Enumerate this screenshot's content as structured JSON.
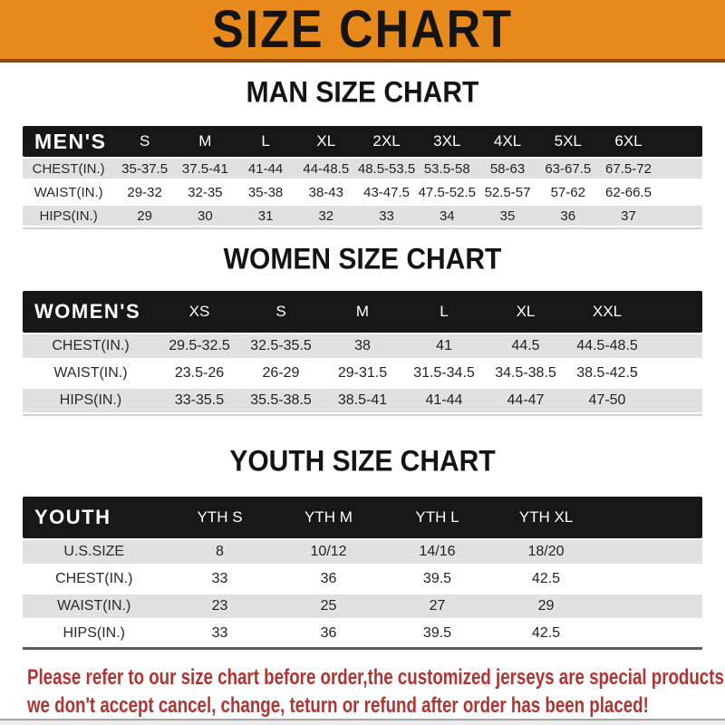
{
  "banner": {
    "title": "SIZE CHART",
    "bg_color": "#E8891C",
    "text_color": "#141414"
  },
  "sections": {
    "men": {
      "title": "MAN SIZE CHART",
      "table": {
        "header": {
          "label": "MEN'S",
          "sizes": [
            "S",
            "M",
            "L",
            "XL",
            "2XL",
            "3XL",
            "4XL",
            "5XL",
            "6XL"
          ]
        },
        "rows": [
          {
            "label": "CHEST(IN.)",
            "values": [
              "35-37.5",
              "37.5-41",
              "41-44",
              "44-48.5",
              "48.5-53.5",
              "53.5-58",
              "58-63",
              "63-67.5",
              "67.5-72"
            ]
          },
          {
            "label": "WAIST(IN.)",
            "values": [
              "29-32",
              "32-35",
              "35-38",
              "38-43",
              "43-47.5",
              "47.5-52.5",
              "52.5-57",
              "57-62",
              "62-66.5"
            ]
          },
          {
            "label": "HIPS(IN.)",
            "values": [
              "29",
              "30",
              "31",
              "32",
              "33",
              "34",
              "35",
              "36",
              "37"
            ]
          }
        ]
      }
    },
    "women": {
      "title": "WOMEN SIZE CHART",
      "table": {
        "header": {
          "label": "WOMEN'S",
          "sizes": [
            "XS",
            "S",
            "M",
            "L",
            "XL",
            "XXL"
          ]
        },
        "rows": [
          {
            "label": "CHEST(IN.)",
            "values": [
              "29.5-32.5",
              "32.5-35.5",
              "38",
              "41",
              "44.5",
              "44.5-48.5"
            ]
          },
          {
            "label": "WAIST(IN.)",
            "values": [
              "23.5-26",
              "26-29",
              "29-31.5",
              "31.5-34.5",
              "34.5-38.5",
              "38.5-42.5"
            ]
          },
          {
            "label": "HIPS(IN.)",
            "values": [
              "33-35.5",
              "35.5-38.5",
              "38.5-41",
              "41-44",
              "44-47",
              "47-50"
            ]
          }
        ]
      }
    },
    "youth": {
      "title": "YOUTH SIZE CHART",
      "table": {
        "header": {
          "label": "YOUTH",
          "sizes": [
            "YTH S",
            "YTH M",
            "YTH L",
            "YTH XL"
          ]
        },
        "rows": [
          {
            "label": "U.S.SIZE",
            "values": [
              "8",
              "10/12",
              "14/16",
              "18/20"
            ]
          },
          {
            "label": "CHEST(IN.)",
            "values": [
              "33",
              "36",
              "39.5",
              "42.5"
            ]
          },
          {
            "label": "WAIST(IN.)",
            "values": [
              "23",
              "25",
              "27",
              "29"
            ]
          },
          {
            "label": "HIPS(IN.)",
            "values": [
              "33",
              "36",
              "39.5",
              "42.5"
            ]
          }
        ]
      }
    }
  },
  "footer": {
    "line1": "Please refer to our size chart before order,the customized jerseys are special products,",
    "line2": "we don't accept cancel, change, teturn or refund after order has been placed!",
    "text_color": "#B23431"
  }
}
